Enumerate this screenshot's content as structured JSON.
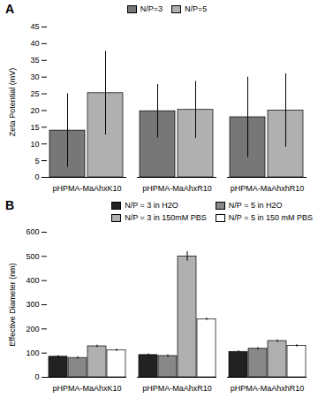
{
  "chart_data": [
    {
      "type": "bar",
      "title": "A",
      "ylabel": "Zeta Potential (mV)",
      "categories": [
        "pHPMA-MaAhxK10",
        "pHPMA-MaAhxR10",
        "pHPMA-MaAhxhR10"
      ],
      "series": [
        {
          "name": "N/P=3",
          "color": "#777777",
          "values": [
            14,
            19.8,
            18
          ],
          "errors": [
            11,
            8,
            12
          ]
        },
        {
          "name": "N/P=5",
          "color": "#b0b0b0",
          "values": [
            25.2,
            20.2,
            20
          ],
          "errors": [
            12.5,
            8.5,
            11
          ]
        }
      ],
      "ylim": [
        0,
        45
      ],
      "yticks": [
        0,
        5,
        10,
        15,
        20,
        25,
        30,
        35,
        40,
        45
      ],
      "legend": "upper center"
    },
    {
      "type": "bar",
      "title": "B",
      "ylabel": "Effective Diameter (nm)",
      "categories": [
        "pHPMA-MaAhxK10",
        "pHPMA-MaAhxR10",
        "pHPMA-MaAhxhR10"
      ],
      "series": [
        {
          "name": "N/P = 3 in H2O",
          "color": "#222222",
          "values": [
            85,
            92,
            105
          ],
          "errors": [
            5,
            5,
            5
          ]
        },
        {
          "name": "N/P = 5 in H2O",
          "color": "#888888",
          "values": [
            80,
            88,
            118
          ],
          "errors": [
            5,
            5,
            5
          ]
        },
        {
          "name": "N/P = 3 in 150mM PBS",
          "color": "#b0b0b0",
          "values": [
            128,
            500,
            150
          ],
          "errors": [
            5,
            20,
            5
          ]
        },
        {
          "name": "N/P = 5 in 150 mM PBS",
          "color": "#ffffff",
          "values": [
            112,
            240,
            130
          ],
          "errors": [
            5,
            5,
            5
          ]
        }
      ],
      "ylim": [
        0,
        600
      ],
      "yticks": [
        0,
        100,
        200,
        300,
        400,
        500,
        600
      ],
      "legend": "upper right"
    }
  ]
}
